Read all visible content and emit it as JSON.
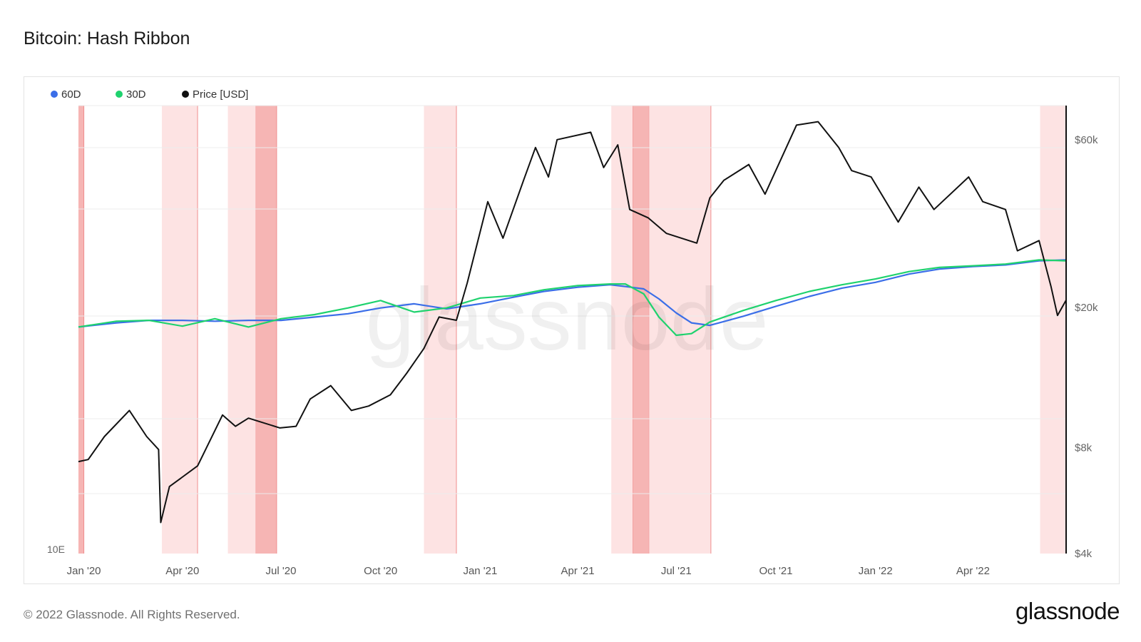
{
  "page": {
    "title": "Bitcoin: Hash Ribbon",
    "copyright": "© 2022 Glassnode. All Rights Reserved.",
    "logo": "glassnode",
    "watermark": "glassnode"
  },
  "colors": {
    "series_60d": "#3b6ee8",
    "series_30d": "#1fd26e",
    "price": "#111111",
    "band_light": "#fde3e3",
    "band_dark": "#f6b5b4",
    "band_edge": "#f08e8e"
  },
  "chart_data": {
    "type": "line",
    "x_tick_labels": [
      "Jan '20",
      "Apr '20",
      "Jul '20",
      "Oct '20",
      "Jan '21",
      "Apr '21",
      "Jul '21",
      "Oct '21",
      "Jan '22",
      "Apr '22"
    ],
    "x_range": [
      "2019-12-27",
      "2022-06-26"
    ],
    "left_axis_tick_labels": [
      "10E"
    ],
    "right_axis": {
      "scale": "log",
      "range": [
        4000,
        75000
      ],
      "tick_values": [
        4000,
        8000,
        20000,
        60000
      ],
      "tick_labels": [
        "$4k",
        "$8k",
        "$20k",
        "$60k"
      ]
    },
    "legend": {
      "placement": "top-left",
      "items": [
        {
          "name": "60D",
          "color_key": "series_60d"
        },
        {
          "name": "30D",
          "color_key": "series_30d"
        },
        {
          "name": "Price [USD]",
          "color_key": "price"
        }
      ]
    },
    "capitulation_bands": [
      {
        "start": "2019-12-27",
        "end": "2020-01-01",
        "style": "dark"
      },
      {
        "start": "2020-03-13",
        "end": "2020-04-15",
        "style": "light"
      },
      {
        "start": "2020-05-13",
        "end": "2020-06-08",
        "style": "light"
      },
      {
        "start": "2020-06-08",
        "end": "2020-06-27",
        "style": "dark"
      },
      {
        "start": "2020-11-10",
        "end": "2020-12-10",
        "style": "light"
      },
      {
        "start": "2021-05-02",
        "end": "2021-05-22",
        "style": "light"
      },
      {
        "start": "2021-05-22",
        "end": "2021-06-06",
        "style": "dark"
      },
      {
        "start": "2021-06-06",
        "end": "2021-08-02",
        "style": "light"
      },
      {
        "start": "2022-06-02",
        "end": "2022-06-26",
        "style": "light"
      }
    ],
    "series": [
      {
        "name": "60D",
        "color_key": "series_60d",
        "y_axis": "hash_rate",
        "dates": [
          "2019-12-27",
          "2020-01-31",
          "2020-03-01",
          "2020-04-01",
          "2020-05-01",
          "2020-06-01",
          "2020-07-01",
          "2020-08-01",
          "2020-09-01",
          "2020-10-01",
          "2020-11-01",
          "2020-12-01",
          "2021-01-01",
          "2021-02-01",
          "2021-03-01",
          "2021-04-01",
          "2021-05-01",
          "2021-05-15",
          "2021-06-01",
          "2021-06-15",
          "2021-07-01",
          "2021-07-15",
          "2021-08-01",
          "2021-09-01",
          "2021-10-01",
          "2021-11-01",
          "2021-12-01",
          "2022-01-01",
          "2022-02-01",
          "2022-03-01",
          "2022-04-01",
          "2022-05-01",
          "2022-06-01",
          "2022-06-26"
        ],
        "values": [
          0.1,
          0.15,
          0.18,
          0.18,
          0.17,
          0.18,
          0.18,
          0.22,
          0.26,
          0.33,
          0.38,
          0.32,
          0.38,
          0.46,
          0.53,
          0.58,
          0.61,
          0.59,
          0.56,
          0.44,
          0.27,
          0.15,
          0.12,
          0.23,
          0.35,
          0.47,
          0.57,
          0.64,
          0.74,
          0.8,
          0.83,
          0.85,
          0.9,
          0.91
        ]
      },
      {
        "name": "30D",
        "color_key": "series_30d",
        "y_axis": "hash_rate",
        "dates": [
          "2019-12-27",
          "2020-01-31",
          "2020-03-01",
          "2020-04-01",
          "2020-05-01",
          "2020-06-01",
          "2020-07-01",
          "2020-08-01",
          "2020-09-01",
          "2020-10-01",
          "2020-11-01",
          "2020-12-01",
          "2021-01-01",
          "2021-02-01",
          "2021-03-01",
          "2021-04-01",
          "2021-05-01",
          "2021-05-15",
          "2021-06-01",
          "2021-06-15",
          "2021-07-01",
          "2021-07-15",
          "2021-08-01",
          "2021-09-01",
          "2021-10-01",
          "2021-11-01",
          "2021-12-01",
          "2022-01-01",
          "2022-02-01",
          "2022-03-01",
          "2022-04-01",
          "2022-05-01",
          "2022-06-01",
          "2022-06-26"
        ],
        "values": [
          0.1,
          0.17,
          0.18,
          0.11,
          0.2,
          0.1,
          0.2,
          0.25,
          0.33,
          0.42,
          0.28,
          0.33,
          0.45,
          0.48,
          0.55,
          0.6,
          0.62,
          0.62,
          0.5,
          0.22,
          0.0,
          0.02,
          0.16,
          0.3,
          0.42,
          0.53,
          0.61,
          0.68,
          0.77,
          0.82,
          0.84,
          0.86,
          0.91,
          0.9
        ]
      },
      {
        "name": "Price [USD]",
        "color_key": "price",
        "y_axis": "right",
        "dates": [
          "2019-12-27",
          "2020-01-05",
          "2020-01-20",
          "2020-02-12",
          "2020-02-28",
          "2020-03-10",
          "2020-03-12",
          "2020-03-20",
          "2020-04-15",
          "2020-05-08",
          "2020-05-20",
          "2020-06-01",
          "2020-06-30",
          "2020-07-15",
          "2020-07-28",
          "2020-08-16",
          "2020-09-04",
          "2020-09-20",
          "2020-10-10",
          "2020-10-25",
          "2020-11-10",
          "2020-11-24",
          "2020-12-10",
          "2020-12-20",
          "2021-01-08",
          "2021-01-22",
          "2021-02-10",
          "2021-02-21",
          "2021-03-05",
          "2021-03-13",
          "2021-04-13",
          "2021-04-25",
          "2021-05-08",
          "2021-05-19",
          "2021-06-05",
          "2021-06-22",
          "2021-07-20",
          "2021-08-01",
          "2021-08-14",
          "2021-09-06",
          "2021-09-21",
          "2021-10-20",
          "2021-11-09",
          "2021-11-28",
          "2021-12-10",
          "2021-12-28",
          "2022-01-22",
          "2022-02-10",
          "2022-02-24",
          "2022-03-28",
          "2022-04-10",
          "2022-05-01",
          "2022-05-12",
          "2022-06-01",
          "2022-06-12",
          "2022-06-18",
          "2022-06-26"
        ],
        "values": [
          7300,
          7400,
          8600,
          10200,
          8600,
          7900,
          4900,
          6200,
          7100,
          9900,
          9200,
          9700,
          9100,
          9200,
          11000,
          12000,
          10200,
          10500,
          11300,
          13000,
          15300,
          18800,
          18400,
          23500,
          40000,
          31500,
          46000,
          57000,
          47000,
          60000,
          63000,
          50000,
          58000,
          38000,
          36000,
          32500,
          30500,
          41000,
          46000,
          51000,
          42000,
          66000,
          67500,
          57000,
          49000,
          47000,
          35000,
          44000,
          38000,
          47000,
          40000,
          38000,
          29000,
          31000,
          23000,
          19000,
          21000
        ]
      }
    ]
  }
}
